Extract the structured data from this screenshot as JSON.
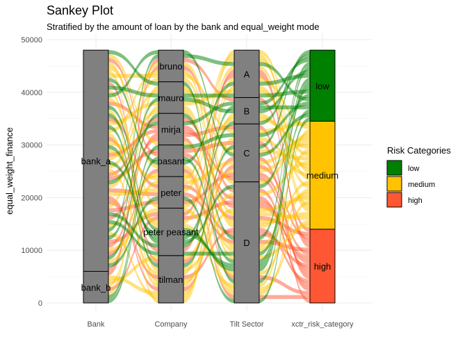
{
  "chart_data": {
    "type": "sankey",
    "title": "Sankey Plot",
    "subtitle": "Stratified by the amount of loan by the bank and equal_weight mode",
    "ylabel": "equal_weight_finance",
    "xlabel": "",
    "ylim": [
      0,
      50000
    ],
    "yticks": [
      0,
      10000,
      20000,
      30000,
      40000,
      50000
    ],
    "axes": [
      "Bank",
      "Company",
      "Tilt Sector",
      "xctr_risk_category"
    ],
    "total": 48000,
    "grid": true,
    "legend_position": "right",
    "legend": {
      "title": "Risk Categories",
      "entries": [
        {
          "key": "low",
          "label": "low",
          "color": "#008000"
        },
        {
          "key": "medium",
          "label": "medium",
          "color": "#FFC300"
        },
        {
          "key": "high",
          "label": "high",
          "color": "#FF5733"
        }
      ]
    },
    "strata": [
      [
        {
          "label": "bank_b",
          "value": 6000
        },
        {
          "label": "bank_a",
          "value": 42000
        }
      ],
      [
        {
          "label": "tilman",
          "value": 9000
        },
        {
          "label": "peter peasant",
          "value": 9000
        },
        {
          "label": "peter",
          "value": 6000
        },
        {
          "label": "pasant",
          "value": 6000
        },
        {
          "label": "mirja",
          "value": 6000
        },
        {
          "label": "mauro",
          "value": 6000
        },
        {
          "label": "bruno",
          "value": 6000
        }
      ],
      [
        {
          "label": "D",
          "value": 23000
        },
        {
          "label": "C",
          "value": 11000
        },
        {
          "label": "B",
          "value": 5000
        },
        {
          "label": "A",
          "value": 9000
        }
      ],
      [
        {
          "label": "high",
          "value": 14000,
          "risk": "high"
        },
        {
          "label": "medium",
          "value": 20500,
          "risk": "medium"
        },
        {
          "label": "low",
          "value": 13500,
          "risk": "low"
        }
      ]
    ]
  }
}
